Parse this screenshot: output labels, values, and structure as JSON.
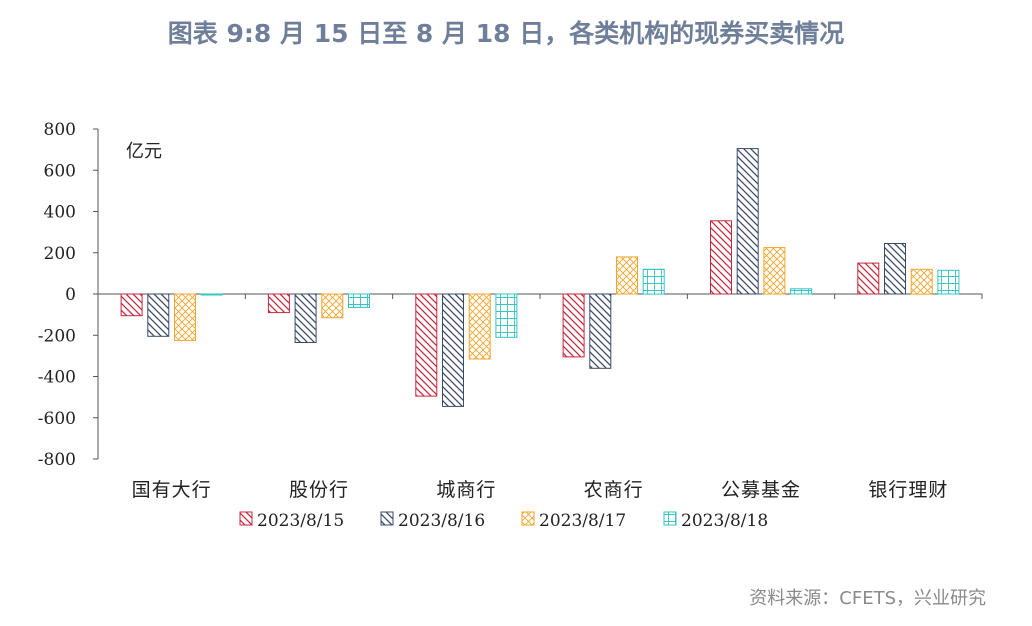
{
  "chart_data": {
    "type": "bar",
    "title": "图表 9:8 月 15 日至 8 月 18 日，各类机构的现券买卖情况",
    "unit_label": "亿元",
    "categories": [
      "国有大行",
      "股份行",
      "城商行",
      "农商行",
      "公募基金",
      "银行理财"
    ],
    "series": [
      {
        "name": "2023/8/15",
        "color": "#c8283c",
        "pattern": "diagonal-down",
        "values": [
          -105,
          -90,
          -495,
          -305,
          355,
          150
        ]
      },
      {
        "name": "2023/8/16",
        "color": "#3a4b68",
        "pattern": "diagonal-down",
        "values": [
          -205,
          -235,
          -545,
          -360,
          705,
          245
        ]
      },
      {
        "name": "2023/8/17",
        "color": "#f2a52c",
        "pattern": "diagonal-cross",
        "values": [
          -225,
          -115,
          -315,
          180,
          225,
          120
        ]
      },
      {
        "name": "2023/8/18",
        "color": "#33c4c4",
        "pattern": "grid",
        "values": [
          -5,
          -65,
          -210,
          120,
          25,
          115
        ]
      }
    ],
    "ylim": [
      -800,
      800
    ],
    "yticks": [
      -800,
      -600,
      -400,
      -200,
      0,
      200,
      400,
      600,
      800
    ],
    "ytick_labels": [
      "-800",
      "-600",
      "-400",
      "-200",
      "0",
      "200",
      "400",
      "600",
      "800"
    ],
    "xlabel": "",
    "ylabel": "",
    "grid": false,
    "legend_position": "bottom",
    "source": "资料来源：CFETS，兴业研究"
  }
}
